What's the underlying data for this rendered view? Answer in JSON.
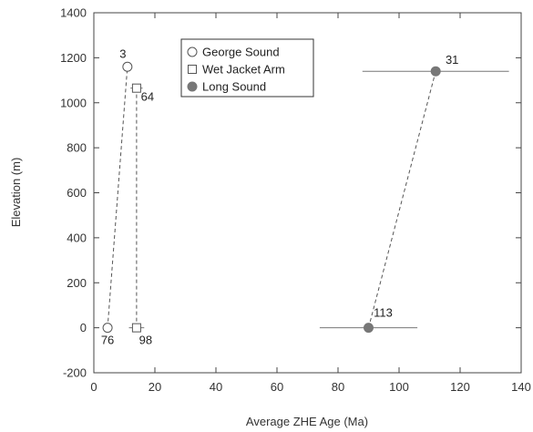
{
  "chart_data": {
    "type": "scatter",
    "xlabel": "Average ZHE Age (Ma)",
    "ylabel": "Elevation (m)",
    "xlim": [
      0,
      140
    ],
    "ylim": [
      -200,
      1400
    ],
    "xticks": [
      0,
      20,
      40,
      60,
      80,
      100,
      120,
      140
    ],
    "yticks": [
      -200,
      0,
      200,
      400,
      600,
      800,
      1000,
      1200,
      1400
    ],
    "grid": false,
    "legend_position": "top-center",
    "series": [
      {
        "name": "George Sound",
        "marker": "open-circle",
        "color": "#555555",
        "connector": "dashed",
        "points": [
          {
            "x": 4.5,
            "y": 0,
            "label": "76",
            "xerr": 0
          },
          {
            "x": 11,
            "y": 1160,
            "label": "3",
            "xerr": 1.5
          }
        ]
      },
      {
        "name": "Wet Jacket Arm",
        "marker": "open-square",
        "color": "#555555",
        "connector": "dashed",
        "points": [
          {
            "x": 14,
            "y": 0,
            "label": "98",
            "xerr": 2.5
          },
          {
            "x": 14,
            "y": 1065,
            "label": "64",
            "xerr": 2
          }
        ]
      },
      {
        "name": "Long Sound",
        "marker": "filled-circle",
        "color": "#777777",
        "connector": "dashed",
        "points": [
          {
            "x": 90,
            "y": 0,
            "label": "113",
            "xerr": 16
          },
          {
            "x": 112,
            "y": 1140,
            "label": "31",
            "xerr": 24
          }
        ]
      }
    ]
  }
}
